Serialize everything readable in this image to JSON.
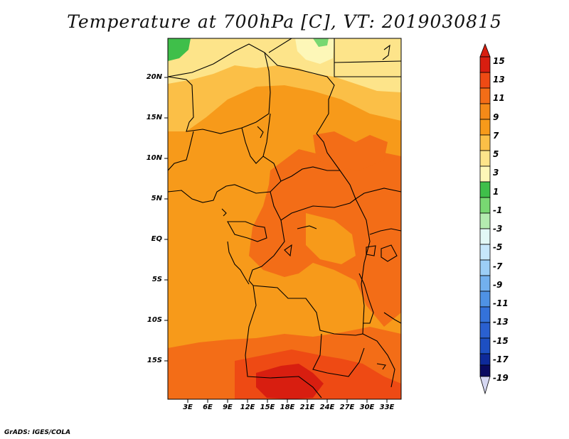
{
  "title": "Temperature at 700hPa [C], VT: 2019030815",
  "credit": "GrADS: IGES/COLA",
  "lat_labels": [
    "20N",
    "15N",
    "10N",
    "5N",
    "EQ",
    "5S",
    "10S",
    "15S"
  ],
  "lon_labels": [
    "3E",
    "6E",
    "9E",
    "12E",
    "15E",
    "18E",
    "21E",
    "24E",
    "27E",
    "30E",
    "33E"
  ],
  "colorbar_labels": [
    "15",
    "13",
    "11",
    "9",
    "7",
    "5",
    "3",
    "1",
    "-1",
    "-3",
    "-5",
    "-7",
    "-9",
    "-11",
    "-13",
    "-15",
    "-17",
    "-19"
  ],
  "colors": {
    "c15": "#d81e10",
    "c13": "#ee4a14",
    "c11": "#f36d17",
    "c9": "#f79a1a",
    "c7": "#fbbf47",
    "c5": "#fde48a",
    "c3": "#fdf7b8",
    "c1": "#3fbf4a",
    "cm1": "#78d872",
    "cm3": "#b4ecb0",
    "cm5": "#e2f8f6",
    "cm7": "#c6e7fb",
    "cm9": "#9ccef6",
    "cm11": "#72b0ee",
    "cm13": "#4f92e4",
    "cm15": "#3472da",
    "cm17": "#1d4fc2",
    "cm19": "#0e2a9a",
    "bottom": "#0a0a60",
    "below": "#d6d8f2"
  }
}
